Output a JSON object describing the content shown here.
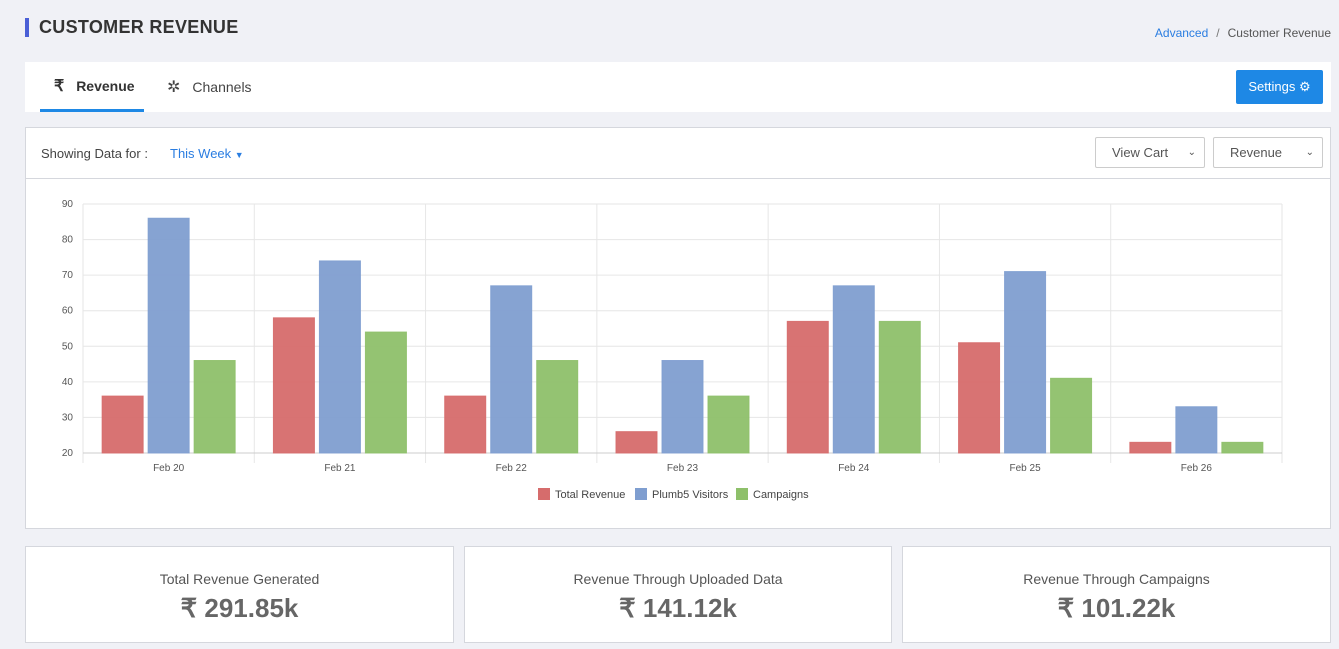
{
  "header": {
    "title": "CUSTOMER REVENUE",
    "breadcrumb": [
      "Advanced",
      "Customer Revenue"
    ]
  },
  "tabs": [
    {
      "label": "Revenue",
      "icon": "rupee-icon"
    },
    {
      "label": "Channels",
      "icon": "sparkle-icon"
    }
  ],
  "settings_label": "Settings",
  "filter": {
    "label": "Showing Data for :",
    "period": "This Week",
    "view_select": "View Cart",
    "metric_select": "Revenue"
  },
  "colors": {
    "total": "#d66c6c",
    "visitors": "#7f9ed0",
    "campaigns": "#8ec06a"
  },
  "chart_data": {
    "type": "bar",
    "categories": [
      "Feb 20",
      "Feb 21",
      "Feb 22",
      "Feb 23",
      "Feb 24",
      "Feb 25",
      "Feb 26"
    ],
    "series": [
      {
        "name": "Total Revenue",
        "values": [
          36,
          58,
          36,
          26,
          57,
          51,
          23
        ]
      },
      {
        "name": "Plumb5 Visitors",
        "values": [
          86,
          74,
          67,
          46,
          67,
          71,
          33
        ]
      },
      {
        "name": "Campaigns",
        "values": [
          46,
          54,
          46,
          36,
          57,
          41,
          23
        ]
      }
    ],
    "ylim": [
      20,
      90
    ],
    "yticks": [
      "20",
      "30",
      "40",
      "50",
      "60",
      "70",
      "80",
      "90"
    ],
    "legend": "bottom"
  },
  "summary": [
    {
      "label": "Total Revenue Generated",
      "value": "₹ 291.85k"
    },
    {
      "label": "Revenue Through Uploaded Data",
      "value": "₹ 141.12k"
    },
    {
      "label": "Revenue Through Campaigns",
      "value": "₹ 101.22k"
    }
  ]
}
